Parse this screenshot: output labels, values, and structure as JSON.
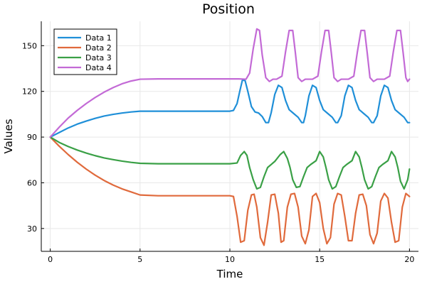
{
  "chart_data": {
    "type": "line",
    "title": "Position",
    "xlabel": "Time",
    "ylabel": "Values",
    "xlim": [
      -0.5,
      20.5
    ],
    "ylim": [
      15,
      166
    ],
    "xticks": [
      0,
      5,
      10,
      15,
      20
    ],
    "xtick_labels": [
      "0",
      "5",
      "10",
      "15",
      "20"
    ],
    "yticks": [
      30,
      60,
      90,
      120,
      150
    ],
    "ytick_labels": [
      "30",
      "60",
      "90",
      "120",
      "150"
    ],
    "grid": true,
    "legend_position": "top-left",
    "series": [
      {
        "name": "Data 1",
        "color": "#1f8fd8",
        "x": [
          0,
          0.5,
          1,
          1.5,
          2,
          2.5,
          3,
          3.5,
          4,
          4.5,
          5,
          6,
          7,
          8,
          9,
          10,
          10.2,
          10.4,
          10.55,
          10.7,
          10.85,
          11.0,
          11.2,
          11.4,
          11.6,
          11.8,
          12.0,
          12.15,
          12.3,
          12.5,
          12.7,
          12.9,
          13.1,
          13.3,
          13.5,
          13.8,
          14.0,
          14.1,
          14.2,
          14.4,
          14.6,
          14.8,
          15.0,
          15.2,
          15.4,
          15.7,
          15.9,
          16.0,
          16.2,
          16.4,
          16.6,
          16.8,
          17.0,
          17.2,
          17.4,
          17.7,
          17.9,
          18.0,
          18.2,
          18.4,
          18.6,
          18.8,
          19.0,
          19.2,
          19.4,
          19.7,
          19.9,
          20
        ],
        "y": [
          90,
          93,
          96,
          98.5,
          100.5,
          102.3,
          103.8,
          104.9,
          105.8,
          106.5,
          107,
          107,
          107,
          107,
          107,
          107,
          107.5,
          112,
          120,
          127.5,
          127,
          120,
          110,
          106.5,
          105.8,
          103.5,
          99.5,
          99.5,
          106,
          118,
          124,
          122.5,
          114,
          108,
          106,
          103,
          99.5,
          99.5,
          104,
          117,
          124,
          122.5,
          114,
          108,
          106,
          103,
          99.5,
          99.5,
          104,
          117,
          124,
          122.5,
          114,
          108,
          106,
          103,
          99.5,
          99.5,
          104,
          117,
          124,
          122.5,
          114,
          108,
          106,
          103,
          99.5,
          99.5
        ]
      },
      {
        "name": "Data 2",
        "color": "#e06a3c",
        "x": [
          0,
          0.5,
          1,
          1.5,
          2,
          2.5,
          3,
          3.5,
          4,
          4.5,
          5,
          6,
          7,
          8,
          9,
          10,
          10.2,
          10.4,
          10.6,
          10.8,
          11.0,
          11.2,
          11.35,
          11.5,
          11.7,
          11.9,
          12.1,
          12.3,
          12.5,
          12.7,
          12.85,
          13.0,
          13.2,
          13.4,
          13.6,
          13.8,
          14.0,
          14.2,
          14.4,
          14.6,
          14.8,
          15.0,
          15.2,
          15.4,
          15.6,
          15.8,
          16.0,
          16.2,
          16.4,
          16.6,
          16.8,
          17.0,
          17.2,
          17.4,
          17.6,
          17.8,
          18.0,
          18.2,
          18.4,
          18.6,
          18.8,
          19.0,
          19.2,
          19.4,
          19.6,
          19.8,
          20
        ],
        "y": [
          90,
          84,
          78.5,
          73.5,
          69,
          65,
          61.5,
          58.5,
          56,
          54,
          52,
          51.5,
          51.5,
          51.5,
          51.5,
          51.5,
          51,
          38,
          21,
          22,
          42,
          52,
          52.5,
          44,
          24,
          19,
          34,
          52,
          52.5,
          40,
          21,
          22,
          44,
          52.5,
          53,
          44,
          25,
          20,
          29,
          51,
          53,
          47,
          30,
          20,
          24,
          46,
          53,
          52,
          38,
          22,
          22,
          40,
          52,
          52.5,
          45,
          26,
          20,
          27,
          48,
          53,
          50,
          34,
          21,
          22,
          44,
          53,
          51
        ]
      },
      {
        "name": "Data 3",
        "color": "#3aa046",
        "x": [
          0,
          0.5,
          1,
          1.5,
          2,
          2.5,
          3,
          3.5,
          4,
          4.5,
          5,
          6,
          7,
          8,
          9,
          10,
          10.4,
          10.6,
          10.8,
          10.95,
          11.1,
          11.3,
          11.5,
          11.7,
          11.9,
          12.1,
          12.3,
          12.5,
          12.8,
          13.0,
          13.2,
          13.35,
          13.5,
          13.7,
          13.9,
          14.1,
          14.3,
          14.5,
          14.8,
          15.0,
          15.2,
          15.35,
          15.5,
          15.7,
          15.9,
          16.1,
          16.3,
          16.5,
          16.8,
          17.0,
          17.2,
          17.35,
          17.5,
          17.7,
          17.9,
          18.1,
          18.3,
          18.5,
          18.8,
          19.0,
          19.2,
          19.35,
          19.5,
          19.7,
          19.9,
          20
        ],
        "y": [
          90,
          86.5,
          83.8,
          81.5,
          79.5,
          77.8,
          76.3,
          75.2,
          74.2,
          73.4,
          72.8,
          72.5,
          72.5,
          72.5,
          72.5,
          72.5,
          73,
          78,
          80.5,
          78,
          70,
          62,
          56,
          57,
          64,
          70,
          72,
          74,
          78.5,
          80.5,
          76,
          70,
          62,
          57,
          57.5,
          64,
          70,
          72,
          74.5,
          80.5,
          77,
          70,
          62,
          56,
          57.5,
          64,
          70,
          72,
          74.5,
          80.5,
          77,
          70,
          62,
          56,
          57.5,
          64,
          70,
          72,
          74.5,
          80.5,
          77,
          70,
          61,
          56,
          62,
          69
        ]
      },
      {
        "name": "Data 4",
        "color": "#c36ad6",
        "x": [
          0,
          0.5,
          1,
          1.5,
          2,
          2.5,
          3,
          3.5,
          4,
          4.5,
          5,
          6,
          7,
          8,
          9,
          10,
          10.5,
          10.9,
          11.1,
          11.3,
          11.5,
          11.65,
          11.8,
          12.0,
          12.2,
          12.4,
          12.6,
          12.9,
          13.1,
          13.3,
          13.5,
          13.65,
          13.8,
          14.0,
          14.2,
          14.4,
          14.6,
          14.9,
          15.1,
          15.3,
          15.5,
          15.65,
          15.8,
          16.0,
          16.2,
          16.4,
          16.6,
          16.9,
          17.1,
          17.3,
          17.5,
          17.65,
          17.8,
          18.0,
          18.2,
          18.4,
          18.6,
          18.9,
          19.1,
          19.3,
          19.5,
          19.65,
          19.8,
          19.9,
          20
        ],
        "y": [
          90,
          96.5,
          102.5,
          107.5,
          112,
          116,
          119.5,
          122.5,
          125,
          126.8,
          128,
          128.2,
          128.2,
          128.2,
          128.2,
          128.2,
          128.2,
          128,
          132,
          148,
          161,
          160,
          144,
          129,
          126.5,
          128,
          128,
          130,
          146,
          160,
          160,
          145,
          129,
          126.5,
          128,
          128,
          128,
          130,
          146,
          160,
          160,
          145,
          129,
          126.5,
          128,
          128,
          128,
          130,
          146,
          160,
          160,
          145,
          129,
          126.5,
          128,
          128,
          128,
          130,
          146,
          160,
          160,
          145,
          129,
          126.5,
          128
        ]
      }
    ]
  }
}
